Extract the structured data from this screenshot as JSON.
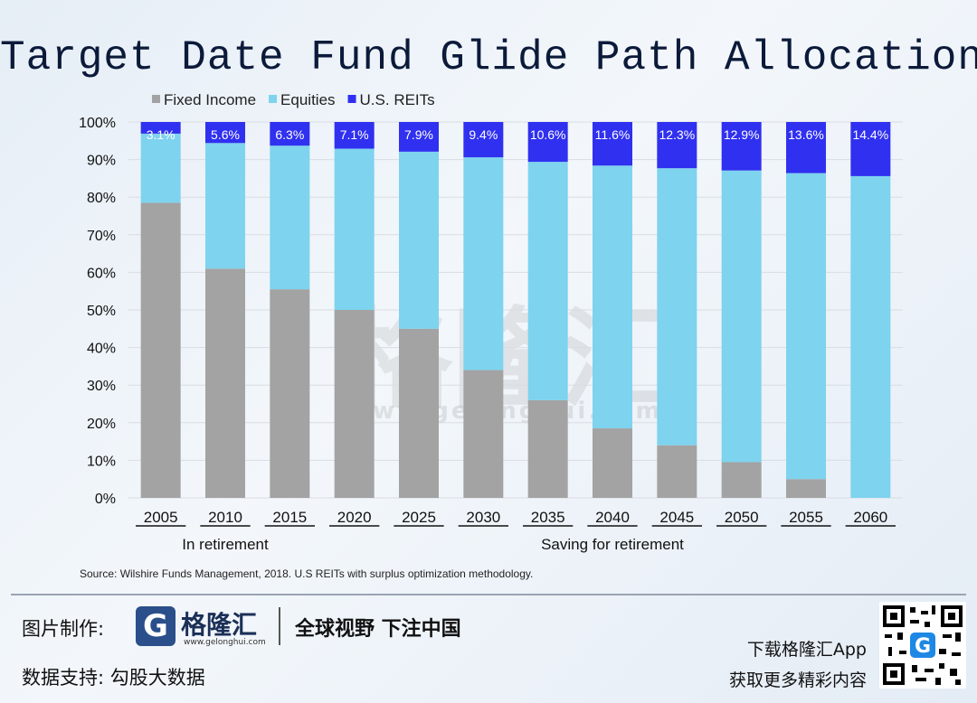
{
  "chart_data": {
    "type": "bar",
    "stacked": true,
    "title": "Target Date Fund Glide Path Allocations",
    "categories": [
      "2005",
      "2010",
      "2015",
      "2020",
      "2025",
      "2030",
      "2035",
      "2040",
      "2045",
      "2050",
      "2055",
      "2060"
    ],
    "series": [
      {
        "name": "Fixed Income",
        "color": "#a3a3a3",
        "values": [
          78.5,
          61.0,
          55.5,
          50.0,
          45.0,
          34.0,
          26.0,
          18.5,
          14.0,
          9.5,
          5.0,
          0.0
        ]
      },
      {
        "name": "Equities",
        "color": "#7ed3ee",
        "values": [
          18.4,
          33.4,
          38.2,
          42.9,
          47.1,
          56.6,
          63.4,
          69.9,
          73.7,
          77.6,
          81.4,
          85.6
        ]
      },
      {
        "name": "U.S. REITs",
        "color": "#3030f0",
        "values": [
          3.1,
          5.6,
          6.3,
          7.1,
          7.9,
          9.4,
          10.6,
          11.6,
          12.3,
          12.9,
          13.6,
          14.4
        ]
      }
    ],
    "reit_labels": [
      "3.1%",
      "5.6%",
      "6.3%",
      "7.1%",
      "7.9%",
      "9.4%",
      "10.6%",
      "11.6%",
      "12.3%",
      "12.9%",
      "13.6%",
      "14.4%"
    ],
    "yticks": [
      "0%",
      "10%",
      "20%",
      "30%",
      "40%",
      "50%",
      "60%",
      "70%",
      "80%",
      "90%",
      "100%"
    ],
    "ylim": [
      0,
      100
    ],
    "legend_position": "top-left",
    "groups": [
      {
        "label": "In retirement",
        "from": 0,
        "to": 2
      },
      {
        "label": "Saving for retirement",
        "from": 3,
        "to": 11
      }
    ],
    "source": "Source: Wilshire Funds Management, 2018.  U.S REITs with surplus optimization methodology."
  },
  "watermark": {
    "text": "格隆汇",
    "url": "www.gelonghui.com"
  },
  "footer": {
    "credit_label": "图片制作:",
    "logo_letter": "G",
    "logo_name": "格隆汇",
    "logo_url": "www.gelonghui.com",
    "slogan": "全球视野 下注中国",
    "data_label": "数据支持:  勾股大数据",
    "download": "下载格隆汇App",
    "more": "获取更多精彩内容"
  },
  "colors": {
    "title": "#0c1a3a",
    "grid": "#d9dde3"
  }
}
